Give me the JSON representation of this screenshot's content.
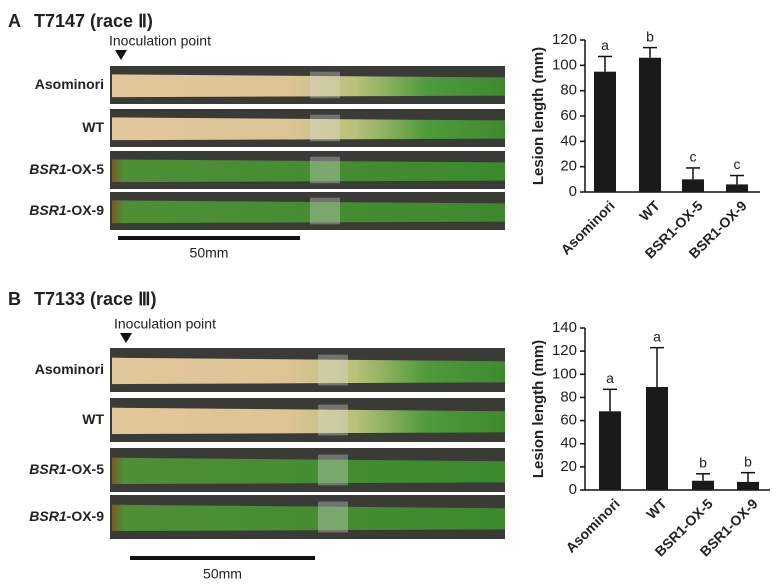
{
  "panels": [
    {
      "label": "A",
      "title": "T7147 (race Ⅱ)",
      "inoculation": "Inoculation point",
      "rows": [
        [
          {
            "text": "Asominori"
          }
        ],
        [
          {
            "text": "WT"
          }
        ],
        [
          {
            "text": "BSR1",
            "italic": true
          },
          {
            "text": "-OX-5"
          }
        ],
        [
          {
            "text": "BSR1",
            "italic": true
          },
          {
            "text": "-OX-9"
          }
        ]
      ],
      "scale": "50mm"
    },
    {
      "label": "B",
      "title": "T7133 (race Ⅲ)",
      "inoculation": "Inoculation point",
      "rows": [
        [
          {
            "text": "Asominori"
          }
        ],
        [
          {
            "text": "WT"
          }
        ],
        [
          {
            "text": "BSR1",
            "italic": true
          },
          {
            "text": "-OX-5"
          }
        ],
        [
          {
            "text": "BSR1",
            "italic": true
          },
          {
            "text": "-OX-9"
          }
        ]
      ],
      "scale": "50mm"
    }
  ],
  "chart_data": [
    {
      "type": "bar",
      "ylabel": "Lesion length (mm)",
      "categories": [
        "Asominori",
        "WT",
        "BSR1-OX-5",
        "BSR1-OX-9"
      ],
      "values": [
        95,
        106,
        10,
        6
      ],
      "errors": [
        12,
        8,
        9,
        7
      ],
      "letters": [
        "a",
        "b",
        "c",
        "c"
      ],
      "color": "#1a1a1a",
      "ylim": [
        0,
        120
      ],
      "yticks": [
        0,
        20,
        40,
        60,
        80,
        100,
        120
      ]
    },
    {
      "type": "bar",
      "ylabel": "Lesion length (mm)",
      "categories": [
        "Asominori",
        "WT",
        "BSR1-OX-5",
        "BSR1-OX-9"
      ],
      "values": [
        68,
        89,
        8,
        7
      ],
      "errors": [
        19,
        34,
        6,
        8
      ],
      "letters": [
        "a",
        "a",
        "b",
        "b"
      ],
      "color": "#1a1a1a",
      "ylim": [
        0,
        140
      ],
      "yticks": [
        0,
        20,
        40,
        60,
        80,
        100,
        120,
        140
      ]
    }
  ]
}
